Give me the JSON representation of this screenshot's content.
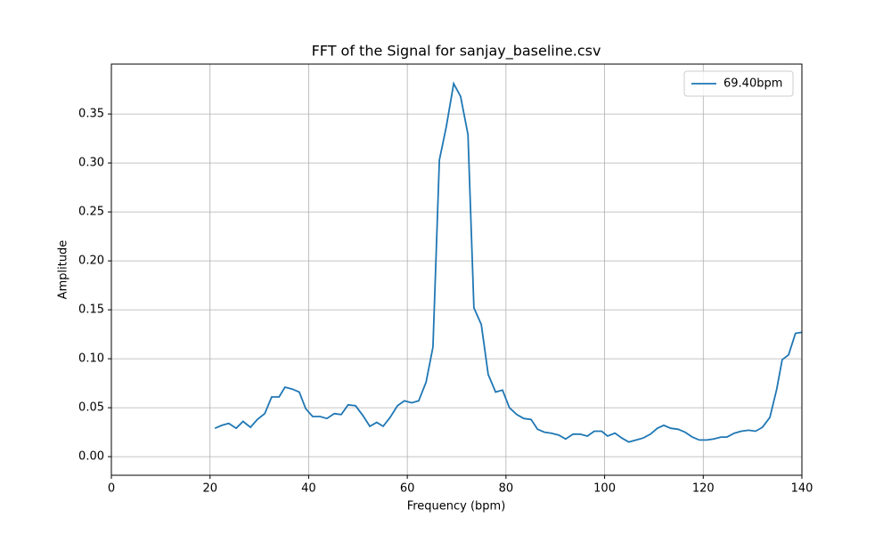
{
  "chart_data": {
    "type": "line",
    "title": "FFT of the Signal for sanjay_baseline.csv",
    "x_label": "Frequency (bpm)",
    "y_label": "Amplitude",
    "x": [
      21.0,
      22.4,
      23.8,
      25.3,
      26.7,
      28.2,
      29.6,
      31.1,
      32.5,
      34.0,
      35.2,
      36.7,
      38.1,
      39.4,
      40.8,
      42.3,
      43.7,
      45.2,
      46.6,
      48.0,
      49.5,
      51.0,
      52.4,
      53.8,
      55.1,
      56.5,
      58.0,
      59.4,
      60.9,
      62.3,
      63.8,
      65.2,
      66.5,
      67.9,
      69.4,
      70.8,
      72.3,
      73.5,
      75.0,
      76.4,
      77.9,
      79.3,
      80.7,
      82.2,
      83.6,
      85.1,
      86.4,
      87.8,
      89.2,
      90.7,
      92.1,
      93.6,
      95.0,
      96.5,
      97.9,
      99.4,
      100.6,
      102.1,
      103.5,
      104.9,
      106.4,
      107.8,
      109.3,
      110.7,
      112.0,
      113.4,
      114.9,
      116.3,
      117.8,
      119.2,
      120.7,
      122.1,
      123.6,
      124.8,
      126.3,
      127.7,
      129.2,
      130.6,
      132.0,
      133.5,
      134.9,
      136.0,
      137.3,
      138.7,
      140.0
    ],
    "series": [
      {
        "name": "69.40bpm",
        "color": "#1f77b4",
        "values": [
          0.029,
          0.032,
          0.034,
          0.029,
          0.036,
          0.03,
          0.038,
          0.044,
          0.061,
          0.061,
          0.071,
          0.069,
          0.066,
          0.049,
          0.041,
          0.041,
          0.039,
          0.044,
          0.043,
          0.053,
          0.052,
          0.042,
          0.031,
          0.035,
          0.031,
          0.04,
          0.052,
          0.057,
          0.055,
          0.057,
          0.076,
          0.112,
          0.303,
          0.337,
          0.381,
          0.368,
          0.329,
          0.152,
          0.135,
          0.084,
          0.066,
          0.068,
          0.05,
          0.043,
          0.039,
          0.038,
          0.028,
          0.025,
          0.024,
          0.022,
          0.018,
          0.023,
          0.023,
          0.021,
          0.026,
          0.026,
          0.021,
          0.024,
          0.019,
          0.015,
          0.017,
          0.019,
          0.023,
          0.029,
          0.032,
          0.029,
          0.028,
          0.025,
          0.02,
          0.017,
          0.017,
          0.018,
          0.02,
          0.02,
          0.024,
          0.026,
          0.027,
          0.026,
          0.03,
          0.04,
          0.069,
          0.099,
          0.104,
          0.126,
          0.127
        ]
      }
    ],
    "xlim": [
      0,
      140
    ],
    "xticks": [
      0,
      20,
      40,
      60,
      80,
      100,
      120,
      140
    ],
    "ylim": [
      -0.019,
      0.401
    ],
    "yticks": [
      {
        "value": 0,
        "label": "0.00"
      },
      0.05,
      {
        "value": 0.1,
        "label": "0.10"
      },
      0.15,
      {
        "value": 0.2,
        "label": "0.20"
      },
      0.25,
      {
        "value": 0.3,
        "label": "0.30"
      },
      0.35
    ],
    "grid": true,
    "legend": "upper right"
  }
}
